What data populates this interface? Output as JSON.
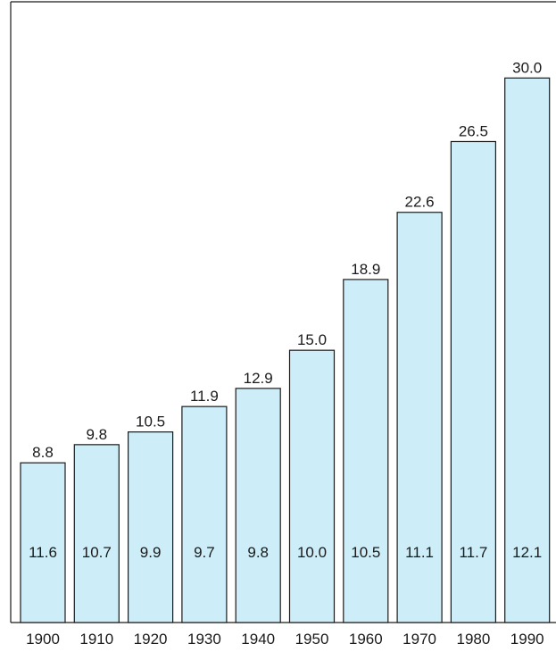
{
  "chart_data": {
    "type": "bar",
    "title": "",
    "xlabel": "",
    "ylabel": "",
    "categories": [
      "1900",
      "1910",
      "1920",
      "1930",
      "1940",
      "1950",
      "1960",
      "1970",
      "1980",
      "1990"
    ],
    "values": [
      8.8,
      9.8,
      10.5,
      11.9,
      12.9,
      15.0,
      18.9,
      22.6,
      26.5,
      30.0
    ],
    "top_labels": [
      "8.8",
      "9.8",
      "10.5",
      "11.9",
      "12.9",
      "15.0",
      "18.9",
      "22.6",
      "26.5",
      "30.0"
    ],
    "inner_labels": [
      "11.6",
      "10.7",
      "9.9",
      "9.7",
      "9.8",
      "10.0",
      "10.5",
      "11.1",
      "11.7",
      "12.1"
    ],
    "ylim": [
      0,
      34.2
    ],
    "grid": false,
    "legend": "none",
    "bar_fill": "#cdeef8",
    "bar_stroke": "#1a1a1a"
  }
}
